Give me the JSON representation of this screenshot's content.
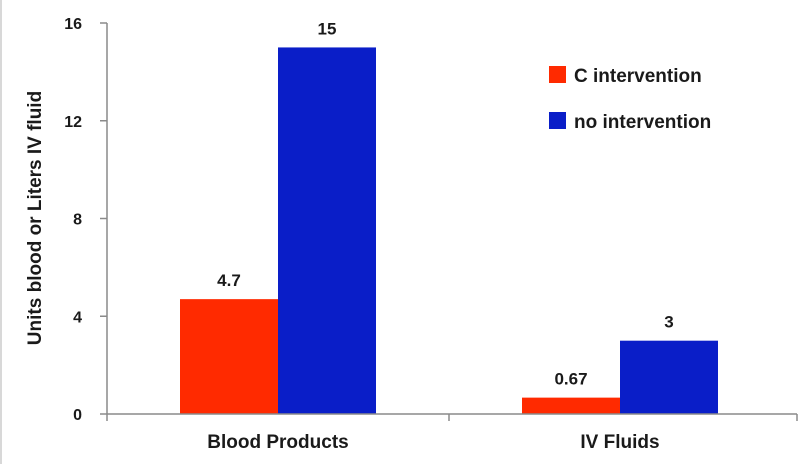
{
  "chart_data": {
    "type": "bar",
    "title": "",
    "xlabel": "",
    "ylabel": "Units blood or Liters IV fluid",
    "categories": [
      "Blood Products",
      "IV Fluids"
    ],
    "series": [
      {
        "name": "C intervention",
        "color": "#ff2a00",
        "values": [
          4.7,
          0.67
        ],
        "value_labels": [
          "4.7",
          "0.67"
        ]
      },
      {
        "name": "no intervention",
        "color": "#0a1ec8",
        "values": [
          15,
          3
        ],
        "value_labels": [
          "15",
          "3"
        ]
      }
    ],
    "ylim": [
      0,
      16
    ],
    "yticks": [
      0,
      4,
      8,
      12,
      16
    ],
    "ytick_labels": [
      "0",
      "4",
      "8",
      "12",
      "16"
    ],
    "grid": false,
    "legend_position": "top-right"
  }
}
